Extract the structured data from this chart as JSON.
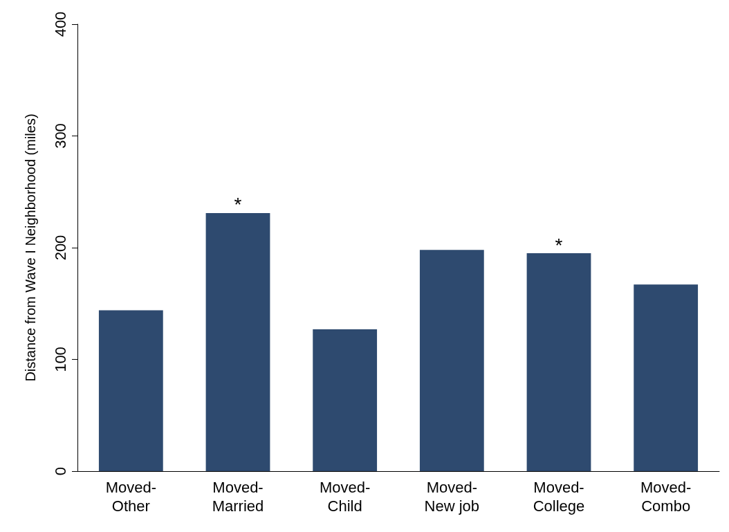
{
  "chart_data": {
    "type": "bar",
    "categories": [
      "Moved-\nOther",
      "Moved-\nMarried",
      "Moved-\nChild",
      "Moved-\nNew job",
      "Moved-\nCollege",
      "Moved-\nCombo"
    ],
    "values": [
      144,
      231,
      127,
      198,
      195,
      167
    ],
    "color": "#2e4a6f",
    "ylabel": "Distance from Wave I Neighborhood (miles)",
    "ylim": [
      0,
      400
    ],
    "yticks": [
      0,
      100,
      200,
      300,
      400
    ],
    "grid": false,
    "annotations": [
      {
        "text": "*",
        "x": "Moved-\nMarried",
        "y": 231
      },
      {
        "text": "*",
        "x": "Moved-\nCollege",
        "y": 195
      }
    ]
  }
}
